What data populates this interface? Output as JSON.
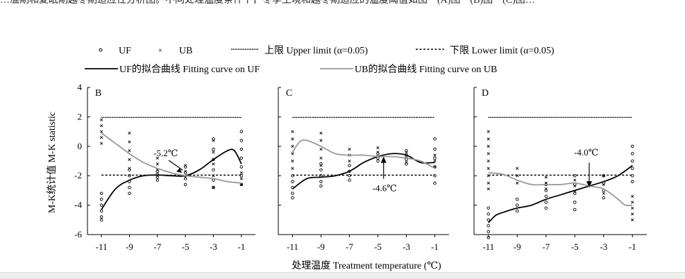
{
  "header_fragment": "…溢期和夏眠期越冬期适应性分析图。不同处理温度条件下，冬季生境和越冬期适应的温度阈值如图一(A)图一(B)图一(C)图…",
  "legend": {
    "uf": "UF",
    "ub": "UB",
    "upper": "上限 Upper limit (α=0.05)",
    "lower": "下限 Lower limit (α=0.05)",
    "uf_curve": "UF的拟合曲线 Fitting curve on UF",
    "ub_curve": "UB的拟合曲线 Fitting curve on UB"
  },
  "y_axis_label": "M-K统计值 M-K statistic",
  "x_axis_label": "处理温度 Treatment temperature (℃)",
  "colors": {
    "uf_curve": "#000000",
    "ub_curve": "#999999"
  },
  "chart_data": [
    {
      "type": "line",
      "panel": "B",
      "x_ticks": [
        -11,
        -9,
        -7,
        -5,
        -3,
        -1
      ],
      "y_ticks": [
        4,
        2,
        0,
        -2,
        -4,
        -6
      ],
      "ylim": [
        -6,
        4
      ],
      "xlim": [
        -12,
        0
      ],
      "upper_limit": 1.96,
      "lower_limit": -1.96,
      "series": [
        {
          "name": "UF的拟合曲线 Fitting curve on UF",
          "x": [
            -11,
            -10,
            -9,
            -8,
            -7,
            -6,
            -5,
            -4,
            -3,
            -2,
            -1.5,
            -1
          ],
          "y": [
            -4.3,
            -2.9,
            -2.3,
            -2.0,
            -1.95,
            -2.0,
            -2.0,
            -1.6,
            -0.9,
            -0.3,
            -0.3,
            -1.2
          ]
        },
        {
          "name": "UB的拟合曲线 Fitting curve on UB",
          "x": [
            -11,
            -10,
            -9,
            -8,
            -7,
            -6,
            -5,
            -4,
            -3,
            -2,
            -1
          ],
          "y": [
            0.9,
            0.2,
            -0.5,
            -1.1,
            -1.5,
            -1.8,
            -2.0,
            -2.1,
            -2.2,
            -2.4,
            -2.5
          ]
        }
      ],
      "scatter_columns": [
        {
          "x": -11,
          "uf": [
            -3.2,
            -3.6,
            -4.0,
            -4.4,
            -4.8,
            -5.0
          ],
          "ub": [
            1.8,
            1.4,
            1.0,
            0.6,
            0.2
          ]
        },
        {
          "x": -9,
          "uf": [
            -1.6,
            -2.0,
            -2.4,
            -2.8,
            -3.2
          ],
          "ub": [
            0.9,
            0.3,
            -0.3,
            -0.9,
            -1.5
          ]
        },
        {
          "x": -7,
          "uf": [
            -1.7,
            -1.9,
            -2.1,
            -2.3
          ],
          "ub": [
            -0.8,
            -1.2,
            -1.6,
            -2.0
          ]
        },
        {
          "x": -5,
          "uf": [
            -1.4,
            -1.8,
            -2.2,
            -2.6
          ],
          "ub": [
            -1.3,
            -1.7,
            -2.1
          ]
        },
        {
          "x": -3,
          "uf": [
            0.5,
            -0.2,
            -0.9,
            -1.6,
            -2.3,
            -2.8
          ],
          "ub": [
            0.4,
            -0.4,
            -1.2,
            -2.0,
            -2.8
          ]
        },
        {
          "x": -1,
          "uf": [
            1.0,
            0.4,
            -0.2,
            -0.8,
            -1.4,
            -2.0,
            -2.6
          ],
          "ub": [
            -1.8,
            -2.2,
            -2.6
          ]
        }
      ],
      "annotation": {
        "text": "-5.2℃",
        "x": -5.2,
        "y": -1.9
      }
    },
    {
      "type": "line",
      "panel": "C",
      "x_ticks": [
        -11,
        -9,
        -7,
        -5,
        -3,
        -1
      ],
      "y_ticks": [
        4,
        2,
        0,
        -2,
        -4,
        -6
      ],
      "ylim": [
        -6,
        4
      ],
      "xlim": [
        -12,
        0
      ],
      "upper_limit": 1.96,
      "lower_limit": -1.96,
      "series": [
        {
          "name": "UF的拟合曲线 Fitting curve on UF",
          "x": [
            -11,
            -10,
            -9,
            -8,
            -7,
            -6,
            -5,
            -4,
            -3,
            -2,
            -1
          ],
          "y": [
            -2.9,
            -2.2,
            -2.1,
            -2.0,
            -1.7,
            -1.1,
            -0.7,
            -0.5,
            -0.6,
            -1.1,
            -1.1
          ]
        },
        {
          "name": "UB的拟合曲线 Fitting curve on UB",
          "x": [
            -11,
            -10.5,
            -10,
            -9,
            -8,
            -7,
            -6,
            -5,
            -4,
            -3,
            -2,
            -1
          ],
          "y": [
            -0.4,
            0.3,
            0.4,
            0.0,
            -0.5,
            -0.6,
            -0.6,
            -0.7,
            -0.7,
            -0.8,
            -1.0,
            -1.5
          ]
        }
      ],
      "scatter_columns": [
        {
          "x": -11,
          "uf": [
            -2.0,
            -2.4,
            -2.8,
            -3.2,
            -3.5
          ],
          "ub": [
            1.0,
            0.5,
            0.0,
            -0.5,
            -1.0,
            -1.5
          ]
        },
        {
          "x": -9,
          "uf": [
            -1.2,
            -1.6,
            -2.0,
            -2.4,
            -2.7
          ],
          "ub": [
            0.9,
            0.4,
            -0.2,
            -0.8,
            -1.3
          ]
        },
        {
          "x": -7,
          "uf": [
            -1.3,
            -1.7,
            -2.0,
            -2.3
          ],
          "ub": [
            -0.2,
            -0.6,
            -1.0
          ]
        },
        {
          "x": -5,
          "uf": [
            -0.5,
            -0.8,
            -1.0
          ],
          "ub": [
            -0.1,
            -0.4,
            -0.7
          ]
        },
        {
          "x": -3,
          "uf": [
            -0.3,
            -0.6,
            -0.9,
            -1.2
          ],
          "ub": [
            -0.4,
            -0.8,
            -1.1
          ]
        },
        {
          "x": -1,
          "uf": [
            0.5,
            -0.2,
            -0.8,
            -1.4,
            -2.0,
            -2.5
          ],
          "ub": [
            -0.6,
            -1.0,
            -1.4
          ]
        }
      ],
      "annotation": {
        "text": "-4.6℃",
        "x": -4.6,
        "y": -0.7
      }
    },
    {
      "type": "line",
      "panel": "D",
      "x_ticks": [
        -11,
        -9,
        -7,
        -5,
        -3,
        -1
      ],
      "y_ticks": [
        4,
        2,
        0,
        -2,
        -4,
        -6
      ],
      "ylim": [
        -6,
        4
      ],
      "xlim": [
        -12,
        0
      ],
      "upper_limit": 1.96,
      "lower_limit": -1.96,
      "series": [
        {
          "name": "UF的拟合曲线 Fitting curve on UF",
          "x": [
            -11,
            -10.5,
            -10,
            -9,
            -8,
            -7,
            -6,
            -5,
            -4,
            -3,
            -2,
            -1
          ],
          "y": [
            -5.2,
            -4.7,
            -4.5,
            -4.2,
            -4.0,
            -3.6,
            -3.3,
            -3.0,
            -2.7,
            -2.4,
            -2.0,
            -1.3
          ]
        },
        {
          "name": "UB的拟合曲线 Fitting curve on UB",
          "x": [
            -11,
            -10,
            -9,
            -8,
            -7,
            -6,
            -5,
            -4,
            -3,
            -2,
            -1.5,
            -1
          ],
          "y": [
            -1.8,
            -1.9,
            -2.3,
            -2.6,
            -2.6,
            -2.6,
            -2.5,
            -2.7,
            -2.9,
            -3.6,
            -4.0,
            -4.0
          ]
        }
      ],
      "scatter_columns": [
        {
          "x": -11,
          "uf": [
            -4.2,
            -4.6,
            -5.0,
            -5.4,
            -5.8,
            -6.2
          ],
          "ub": [
            1.0,
            0.5,
            0.0,
            -0.5,
            -1.0,
            -1.5,
            -2.0,
            -2.5,
            -2.9
          ]
        },
        {
          "x": -9,
          "uf": [
            -3.6,
            -4.0,
            -4.4
          ],
          "ub": [
            -1.5,
            -2.0,
            -2.5
          ]
        },
        {
          "x": -7,
          "uf": [
            -2.6,
            -3.0,
            -3.4,
            -3.8,
            -4.2
          ],
          "ub": [
            -2.1,
            -2.5,
            -2.9
          ]
        },
        {
          "x": -5,
          "uf": [
            -2.0,
            -2.6,
            -3.2,
            -3.8,
            -4.3
          ],
          "ub": [
            -2.3,
            -2.7,
            -3.1
          ]
        },
        {
          "x": -3,
          "uf": [
            -2.0,
            -2.5,
            -3.0,
            -3.5
          ],
          "ub": [
            -2.0,
            -2.6,
            -3.2
          ]
        },
        {
          "x": -1,
          "uf": [
            0.0,
            -0.5,
            -1.0,
            -1.5,
            -2.0,
            -2.4
          ],
          "ub": [
            -3.4,
            -3.8,
            -4.2,
            -4.6,
            -5.0
          ]
        }
      ],
      "annotation": {
        "text": "-4.0℃",
        "x": -4.0,
        "y": -2.8
      }
    }
  ]
}
